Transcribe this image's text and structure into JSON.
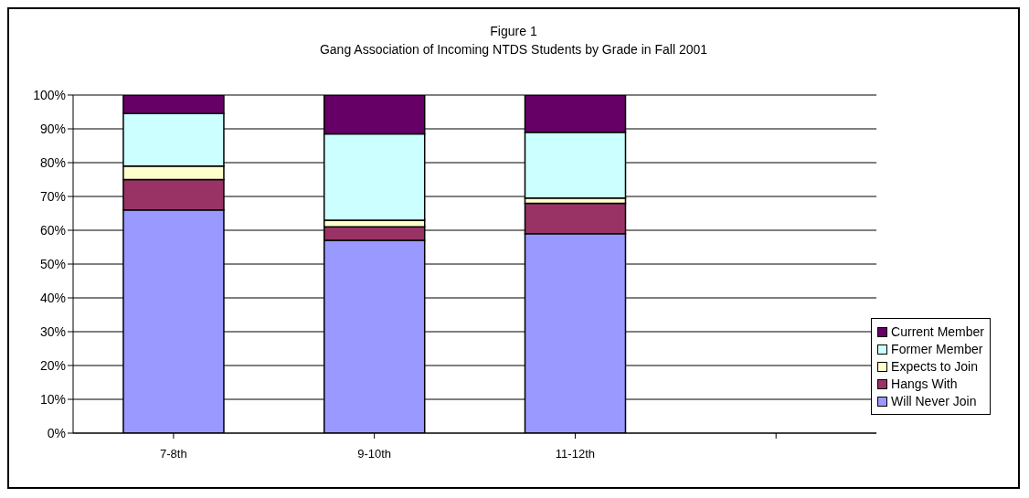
{
  "chart_data": {
    "type": "bar",
    "title": "Figure 1",
    "subtitle": "Gang Association of Incoming NTDS Students by Grade in Fall 2001",
    "categories": [
      "7-8th",
      "9-10th",
      "11-12th",
      null
    ],
    "stacked": true,
    "series": [
      {
        "name": "Will Never Join",
        "color": "#9999ff",
        "values": [
          66,
          57,
          59,
          null
        ]
      },
      {
        "name": "Hangs With",
        "color": "#993366",
        "values": [
          9,
          4,
          9,
          null
        ]
      },
      {
        "name": "Expects to Join",
        "color": "#ffffcc",
        "values": [
          4,
          2,
          1.5,
          null
        ]
      },
      {
        "name": "Former Member",
        "color": "#ccffff",
        "values": [
          15.5,
          25.5,
          19.5,
          null
        ]
      },
      {
        "name": "Current Member",
        "color": "#660066",
        "values": [
          5.5,
          11.5,
          11,
          null
        ]
      }
    ],
    "ylim": [
      0,
      100
    ],
    "yticks": [
      {
        "value": 0,
        "label": "0%"
      },
      {
        "value": 10,
        "label": "10%"
      },
      {
        "value": 20,
        "label": "20%"
      },
      {
        "value": 30,
        "label": "30%"
      },
      {
        "value": 40,
        "label": "40%"
      },
      {
        "value": 50,
        "label": "50%"
      },
      {
        "value": 60,
        "label": "60%"
      },
      {
        "value": 70,
        "label": "70%"
      },
      {
        "value": 80,
        "label": "80%"
      },
      {
        "value": 90,
        "label": "90%"
      },
      {
        "value": 100,
        "label": "100%"
      }
    ],
    "grid": "y",
    "legend": "right"
  }
}
